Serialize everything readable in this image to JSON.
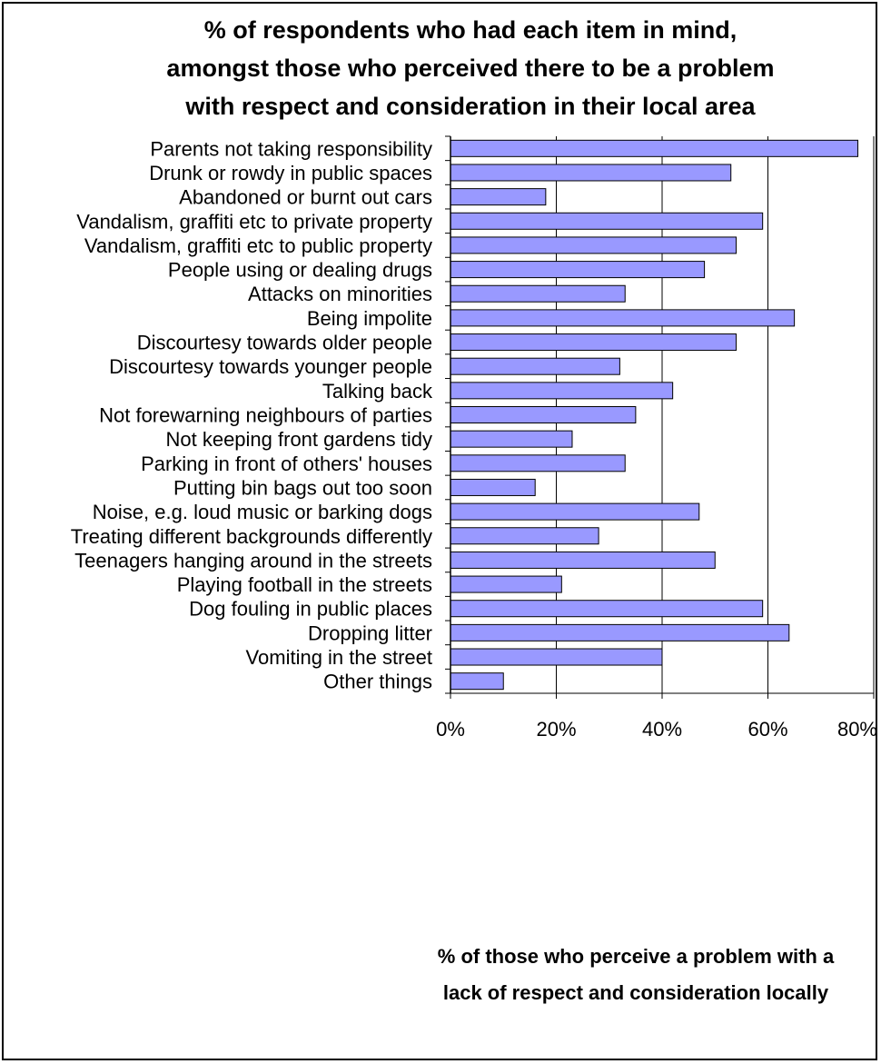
{
  "chart_data": {
    "type": "bar",
    "orientation": "horizontal",
    "title_lines": [
      "% of respondents who had each item in mind,",
      "amongst those who perceived there to be a problem",
      "with respect and consideration in their local area"
    ],
    "xlabel_lines": [
      "% of those who perceive a problem with a",
      "lack of respect and consideration locally"
    ],
    "ylabel": "",
    "categories": [
      "Parents not taking responsibility",
      "Drunk or rowdy in public spaces",
      "Abandoned or burnt out cars",
      "Vandalism, graffiti etc to private property",
      "Vandalism, graffiti etc to public property",
      "People using or dealing drugs",
      "Attacks on minorities",
      "Being impolite",
      "Discourtesy towards older people",
      "Discourtesy towards younger people",
      "Talking back",
      "Not forewarning neighbours of parties",
      "Not keeping front gardens tidy",
      "Parking in front of others' houses",
      "Putting bin bags out too soon",
      "Noise, e.g. loud music or barking dogs",
      "Treating different backgrounds differently",
      "Teenagers hanging around in the streets",
      "Playing football in the streets",
      "Dog fouling in public places",
      "Dropping litter",
      "Vomiting in the street",
      "Other things"
    ],
    "values": [
      77,
      53,
      18,
      59,
      54,
      48,
      33,
      65,
      54,
      32,
      42,
      35,
      23,
      33,
      16,
      47,
      28,
      50,
      21,
      59,
      64,
      40,
      10
    ],
    "xlim": [
      0,
      80
    ],
    "xticks": [
      0,
      20,
      40,
      60,
      80
    ],
    "xtick_labels": [
      "0%",
      "20%",
      "40%",
      "60%",
      "80%"
    ],
    "grid": "vertical",
    "legend": "none",
    "bar_color": "#9999ff",
    "bar_edge_color": "#000000"
  }
}
